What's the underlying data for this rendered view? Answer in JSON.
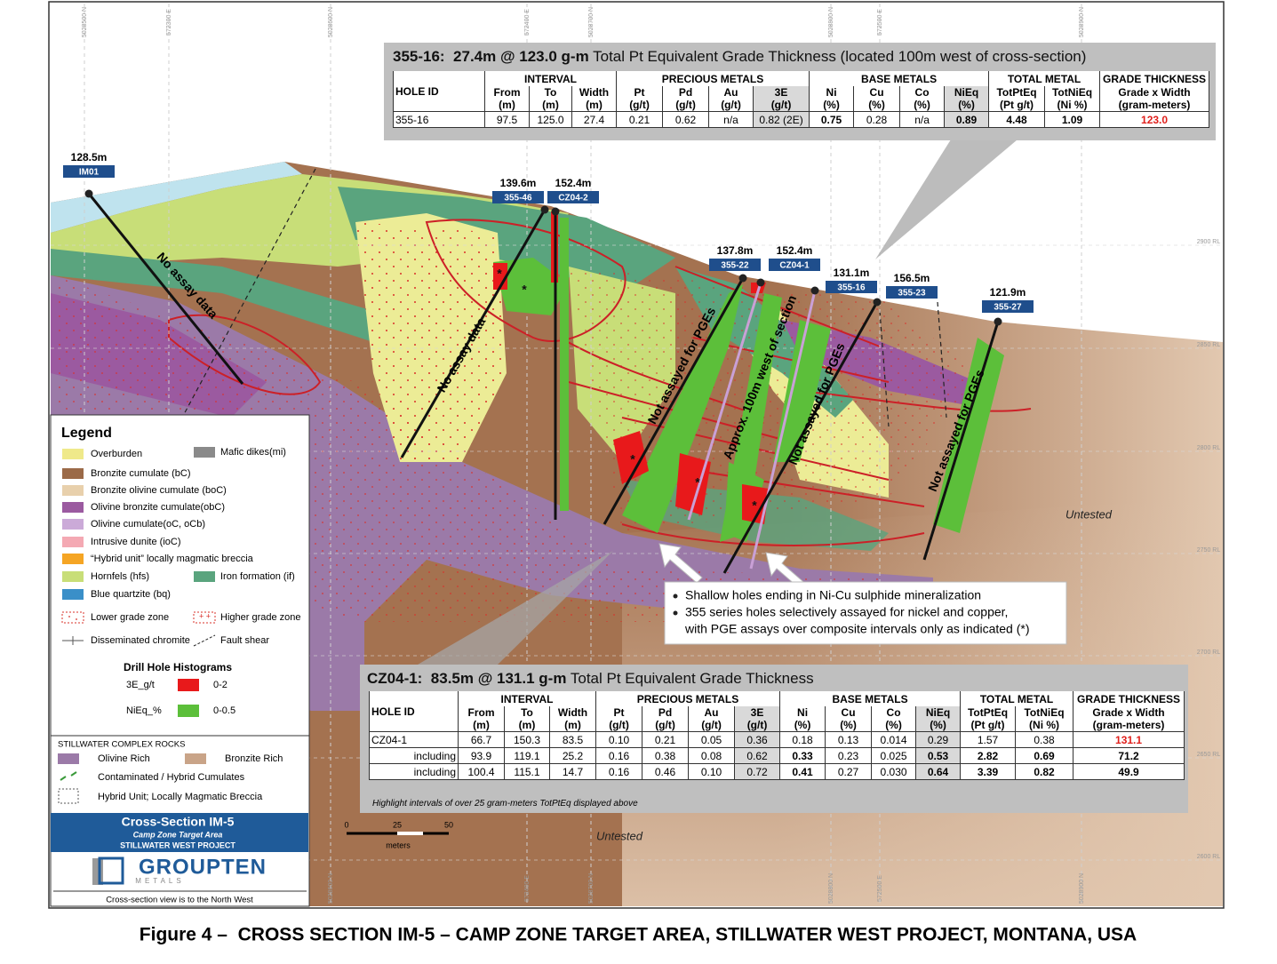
{
  "figure_caption": "Figure 4 –  CROSS SECTION IM-5 – CAMP ZONE TARGET AREA, STILLWATER WEST PROJECT, MONTANA, USA",
  "top_table": {
    "title_bold": "355-16:  27.4m @ 123.0 g-m",
    "title_rest": " Total Pt Equivalent Grade Thickness (located 100m west of cross-section)",
    "group_headers": [
      "INTERVAL",
      "PRECIOUS METALS",
      "BASE METALS",
      "TOTAL METAL",
      "GRADE THICKNESS"
    ],
    "columns": [
      [
        "HOLE ID"
      ],
      [
        "From",
        "(m)"
      ],
      [
        "To",
        "(m)"
      ],
      [
        "Width",
        "(m)"
      ],
      [
        "Pt",
        "(g/t)"
      ],
      [
        "Pd",
        "(g/t)"
      ],
      [
        "Au",
        "(g/t)"
      ],
      [
        "3E",
        "(g/t)"
      ],
      [
        "Ni",
        "(%)"
      ],
      [
        "Cu",
        "(%)"
      ],
      [
        "Co",
        "(%)"
      ],
      [
        "NiEq",
        "(%)"
      ],
      [
        "TotPtEq",
        "(Pt g/t)"
      ],
      [
        "TotNiEq",
        "(Ni %)"
      ],
      [
        "Grade x Width",
        "(gram-meters)"
      ]
    ],
    "rows": [
      [
        "355-16",
        "97.5",
        "125.0",
        "27.4",
        "0.21",
        "0.62",
        "n/a",
        "0.82 (2E)",
        "0.75",
        "0.28",
        "n/a",
        "0.89",
        "4.48",
        "1.09",
        "123.0"
      ]
    ]
  },
  "bottom_table": {
    "title_bold": "CZ04-1:  83.5m @ 131.1 g-m",
    "title_rest": " Total Pt Equivalent Grade Thickness",
    "group_headers": [
      "INTERVAL",
      "PRECIOUS METALS",
      "BASE METALS",
      "TOTAL METAL",
      "GRADE THICKNESS"
    ],
    "columns": [
      [
        "HOLE ID"
      ],
      [
        "From",
        "(m)"
      ],
      [
        "To",
        "(m)"
      ],
      [
        "Width",
        "(m)"
      ],
      [
        "Pt",
        "(g/t)"
      ],
      [
        "Pd",
        "(g/t)"
      ],
      [
        "Au",
        "(g/t)"
      ],
      [
        "3E",
        "(g/t)"
      ],
      [
        "Ni",
        "(%)"
      ],
      [
        "Cu",
        "(%)"
      ],
      [
        "Co",
        "(%)"
      ],
      [
        "NiEq",
        "(%)"
      ],
      [
        "TotPtEq",
        "(Pt g/t)"
      ],
      [
        "TotNiEq",
        "(Ni %)"
      ],
      [
        "Grade x Width",
        "(gram-meters)"
      ]
    ],
    "rows": [
      [
        "CZ04-1",
        "66.7",
        "150.3",
        "83.5",
        "0.10",
        "0.21",
        "0.05",
        "0.36",
        "0.18",
        "0.13",
        "0.014",
        "0.29",
        "1.57",
        "0.38",
        "131.1"
      ],
      [
        "including",
        "93.9",
        "119.1",
        "25.2",
        "0.16",
        "0.38",
        "0.08",
        "0.62",
        "0.33",
        "0.23",
        "0.025",
        "0.53",
        "2.82",
        "0.69",
        "71.2"
      ],
      [
        "including",
        "100.4",
        "115.1",
        "14.7",
        "0.16",
        "0.46",
        "0.10",
        "0.72",
        "0.41",
        "0.27",
        "0.030",
        "0.64",
        "3.39",
        "0.82",
        "49.9"
      ]
    ],
    "footnote": "Highlight intervals of over 25 gram-meters TotPtEq displayed above"
  },
  "drill_holes": [
    {
      "label": "IM01",
      "depth": "128.5m"
    },
    {
      "label": "355-46",
      "depth": "139.6m"
    },
    {
      "label": "CZ04-2",
      "depth": "152.4m"
    },
    {
      "label": "355-22",
      "depth": "137.8m"
    },
    {
      "label": "CZ04-1",
      "depth": "152.4m"
    },
    {
      "label": "355-16",
      "depth": "131.1m"
    },
    {
      "label": "355-23",
      "depth": "156.5m"
    },
    {
      "label": "355-27",
      "depth": "121.9m"
    }
  ],
  "hole_annotations": [
    "No assay data",
    "No assay data",
    "Not assayed for PGEs",
    "Approx. 100m west of section",
    "Not assayed for PGEs",
    "Not assayed for PGEs"
  ],
  "asterisk_marks": [
    "*",
    "*",
    "*",
    "*",
    "*"
  ],
  "untested_labels": [
    "Untested",
    "Untested"
  ],
  "callout_bullets": [
    [
      "Shallow holes ending in Ni-Cu sulphide mineralization"
    ],
    [
      "355 series holes selectively assayed for nickel and copper,",
      "with PGE assays over composite intervals only as indicated (*)"
    ]
  ],
  "rl_labels": [
    "2900 RL",
    "2850 RL",
    "2800 RL",
    "2750 RL",
    "2700 RL",
    "2650 RL",
    "2600 RL"
  ],
  "grid_labels": [
    "5028500 N",
    "572300 E",
    "5028600 N",
    "572400 E",
    "5028700 N",
    "5028800 N",
    "572500 E",
    "5028900 N"
  ],
  "scale_bar": {
    "ticks": [
      "0",
      "25",
      "50"
    ],
    "unit": "meters"
  },
  "legend": {
    "title": "Legend",
    "units": [
      {
        "name": "Overburden",
        "color": "#efe98a"
      },
      {
        "name": "Bronzite cumulate (bC)",
        "color": "#9b6a48"
      },
      {
        "name": "Bronzite olivine cumulate (boC)",
        "color": "#e8d0ac"
      },
      {
        "name": "Olivine bronzite cumulate(obC)",
        "color": "#9b5aa0"
      },
      {
        "name": "Olivine cumulate(oC, oCb)",
        "color": "#cbaad8"
      },
      {
        "name": "Intrusive dunite (ioC)",
        "color": "#f4a9b3"
      },
      {
        "name": "“Hybrid unit” locally magmatic breccia",
        "color": "#f5a524"
      },
      {
        "name": "Hornfels (hfs)",
        "color": "#c8de78"
      },
      {
        "name": "Blue quartzite (bq)",
        "color": "#3a8fc8"
      },
      {
        "name": "Mafic dikes(mi)",
        "color": "#8a8a8a"
      },
      {
        "name": "Iron formation (if)",
        "color": "#5aa47e"
      }
    ],
    "lower_grade": "Lower grade zone",
    "higher_grade": "Higher grade zone",
    "chromite": "Disseminated chromite",
    "fault": "Fault shear",
    "histogram_title": "Drill Hole Histograms",
    "histograms": [
      {
        "name": "3E_g/t",
        "range": "0-2",
        "color": "#e8191b"
      },
      {
        "name": "NiEq_%",
        "range": "0-0.5",
        "color": "#5cbf3a"
      }
    ],
    "rocks_title": "STILLWATER COMPLEX ROCKS",
    "olivine_rich": "Olivine Rich",
    "bronzite_rich": "Bronzite Rich",
    "contaminated": "Contaminated / Hybrid Cumulates",
    "hybrid_unit": "Hybrid Unit; Locally Magmatic Breccia"
  },
  "title_block": {
    "title": "Cross-Section IM-5",
    "subtitle": "Camp Zone Target Area",
    "project": "STILLWATER WEST PROJECT",
    "logo": "GROUPTEN",
    "logo_sub": "METALS",
    "view_note": "Cross-section view is to the North West"
  }
}
